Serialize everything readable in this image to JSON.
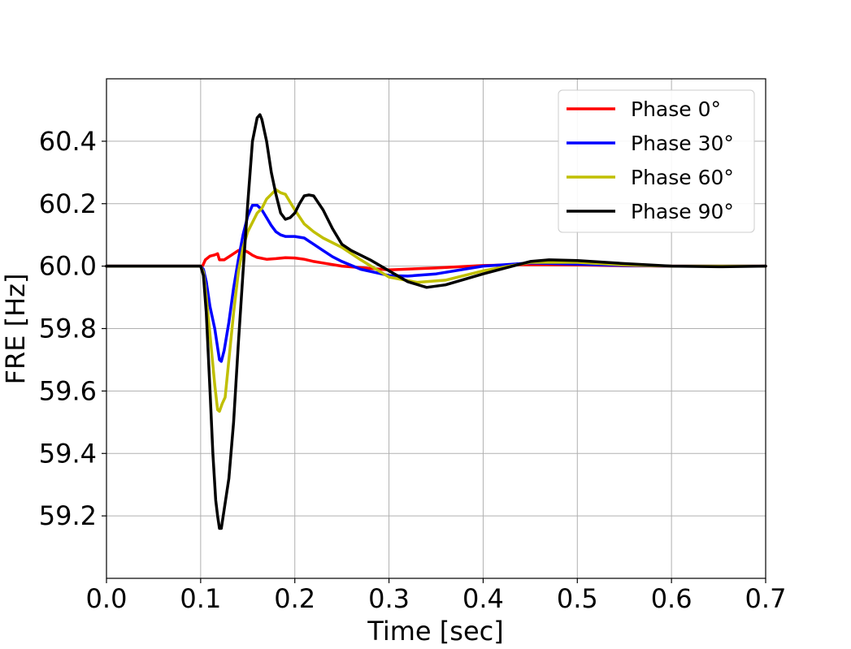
{
  "chart_data": {
    "type": "line",
    "title": "",
    "xlabel": "Time [sec]",
    "ylabel": "FRE [Hz]",
    "xlim": [
      0.0,
      0.7
    ],
    "ylim": [
      59.0,
      60.6
    ],
    "xticks": [
      0.0,
      0.1,
      0.2,
      0.3,
      0.4,
      0.5,
      0.6,
      0.7
    ],
    "xtick_labels": [
      "0.0",
      "0.1",
      "0.2",
      "0.3",
      "0.4",
      "0.5",
      "0.6",
      "0.7"
    ],
    "yticks": [
      59.2,
      59.4,
      59.6,
      59.8,
      60.0,
      60.2,
      60.4
    ],
    "ytick_labels": [
      "59.2",
      "59.4",
      "59.6",
      "59.8",
      "60.0",
      "60.2",
      "60.4"
    ],
    "grid": true,
    "legend_position": "top-right",
    "series": [
      {
        "name": "Phase 0°",
        "color": "#ff0000",
        "x": [
          0.0,
          0.1,
          0.102,
          0.105,
          0.11,
          0.115,
          0.118,
          0.12,
          0.125,
          0.13,
          0.135,
          0.14,
          0.145,
          0.15,
          0.155,
          0.16,
          0.17,
          0.18,
          0.19,
          0.2,
          0.21,
          0.22,
          0.23,
          0.25,
          0.27,
          0.3,
          0.35,
          0.4,
          0.45,
          0.5,
          0.55,
          0.6,
          0.65,
          0.7
        ],
        "y": [
          60.0,
          60.0,
          60.0,
          60.02,
          60.032,
          60.036,
          60.04,
          60.02,
          60.02,
          60.03,
          60.04,
          60.05,
          60.052,
          60.045,
          60.035,
          60.028,
          60.022,
          60.024,
          60.027,
          60.026,
          60.022,
          60.015,
          60.01,
          60.0,
          59.995,
          59.988,
          59.994,
          60.002,
          60.005,
          60.004,
          60.001,
          60.0,
          60.0,
          60.0
        ]
      },
      {
        "name": "Phase 30°",
        "color": "#0000ff",
        "x": [
          0.0,
          0.1,
          0.103,
          0.106,
          0.11,
          0.115,
          0.12,
          0.122,
          0.125,
          0.13,
          0.135,
          0.14,
          0.145,
          0.15,
          0.155,
          0.16,
          0.165,
          0.17,
          0.175,
          0.18,
          0.185,
          0.19,
          0.2,
          0.21,
          0.22,
          0.23,
          0.24,
          0.25,
          0.27,
          0.3,
          0.32,
          0.35,
          0.4,
          0.45,
          0.5,
          0.55,
          0.6,
          0.65,
          0.7
        ],
        "y": [
          60.0,
          60.0,
          59.99,
          59.95,
          59.87,
          59.8,
          59.7,
          59.695,
          59.73,
          59.82,
          59.93,
          60.02,
          60.1,
          60.16,
          60.195,
          60.195,
          60.18,
          60.155,
          60.13,
          60.11,
          60.1,
          60.095,
          60.095,
          60.09,
          60.07,
          60.05,
          60.03,
          60.015,
          59.99,
          59.97,
          59.968,
          59.975,
          60.0,
          60.01,
          60.006,
          60.002,
          60.0,
          60.0,
          60.0
        ]
      },
      {
        "name": "Phase 60°",
        "color": "#c0bf00",
        "x": [
          0.0,
          0.1,
          0.103,
          0.106,
          0.11,
          0.115,
          0.118,
          0.12,
          0.123,
          0.126,
          0.13,
          0.135,
          0.14,
          0.145,
          0.15,
          0.155,
          0.16,
          0.165,
          0.17,
          0.175,
          0.18,
          0.185,
          0.19,
          0.2,
          0.21,
          0.22,
          0.23,
          0.25,
          0.27,
          0.3,
          0.33,
          0.36,
          0.4,
          0.45,
          0.5,
          0.55,
          0.6,
          0.65,
          0.7
        ],
        "y": [
          60.0,
          60.0,
          59.98,
          59.9,
          59.78,
          59.62,
          59.54,
          59.535,
          59.56,
          59.58,
          59.7,
          59.85,
          59.98,
          60.06,
          60.11,
          60.14,
          60.17,
          60.185,
          60.215,
          60.23,
          60.245,
          60.235,
          60.23,
          60.18,
          60.135,
          60.11,
          60.09,
          60.06,
          60.02,
          59.965,
          59.948,
          59.955,
          59.985,
          60.012,
          60.012,
          60.004,
          60.0,
          60.0,
          60.0
        ]
      },
      {
        "name": "Phase 90°",
        "color": "#000000",
        "x": [
          0.0,
          0.1,
          0.103,
          0.106,
          0.11,
          0.113,
          0.116,
          0.118,
          0.12,
          0.122,
          0.125,
          0.13,
          0.135,
          0.14,
          0.145,
          0.15,
          0.155,
          0.16,
          0.163,
          0.165,
          0.17,
          0.175,
          0.18,
          0.185,
          0.19,
          0.195,
          0.2,
          0.205,
          0.21,
          0.215,
          0.22,
          0.23,
          0.24,
          0.25,
          0.26,
          0.28,
          0.3,
          0.32,
          0.34,
          0.36,
          0.4,
          0.45,
          0.47,
          0.5,
          0.55,
          0.6,
          0.65,
          0.7
        ],
        "y": [
          60.0,
          60.0,
          59.97,
          59.85,
          59.6,
          59.4,
          59.25,
          59.2,
          59.16,
          59.16,
          59.22,
          59.32,
          59.5,
          59.75,
          59.98,
          60.2,
          60.4,
          60.475,
          60.485,
          60.47,
          60.4,
          60.3,
          60.23,
          60.17,
          60.15,
          60.155,
          60.17,
          60.2,
          60.225,
          60.228,
          60.225,
          60.18,
          60.12,
          60.07,
          60.05,
          60.02,
          59.985,
          59.95,
          59.932,
          59.94,
          59.975,
          60.015,
          60.02,
          60.018,
          60.008,
          60.0,
          59.998,
          60.0
        ]
      }
    ]
  }
}
